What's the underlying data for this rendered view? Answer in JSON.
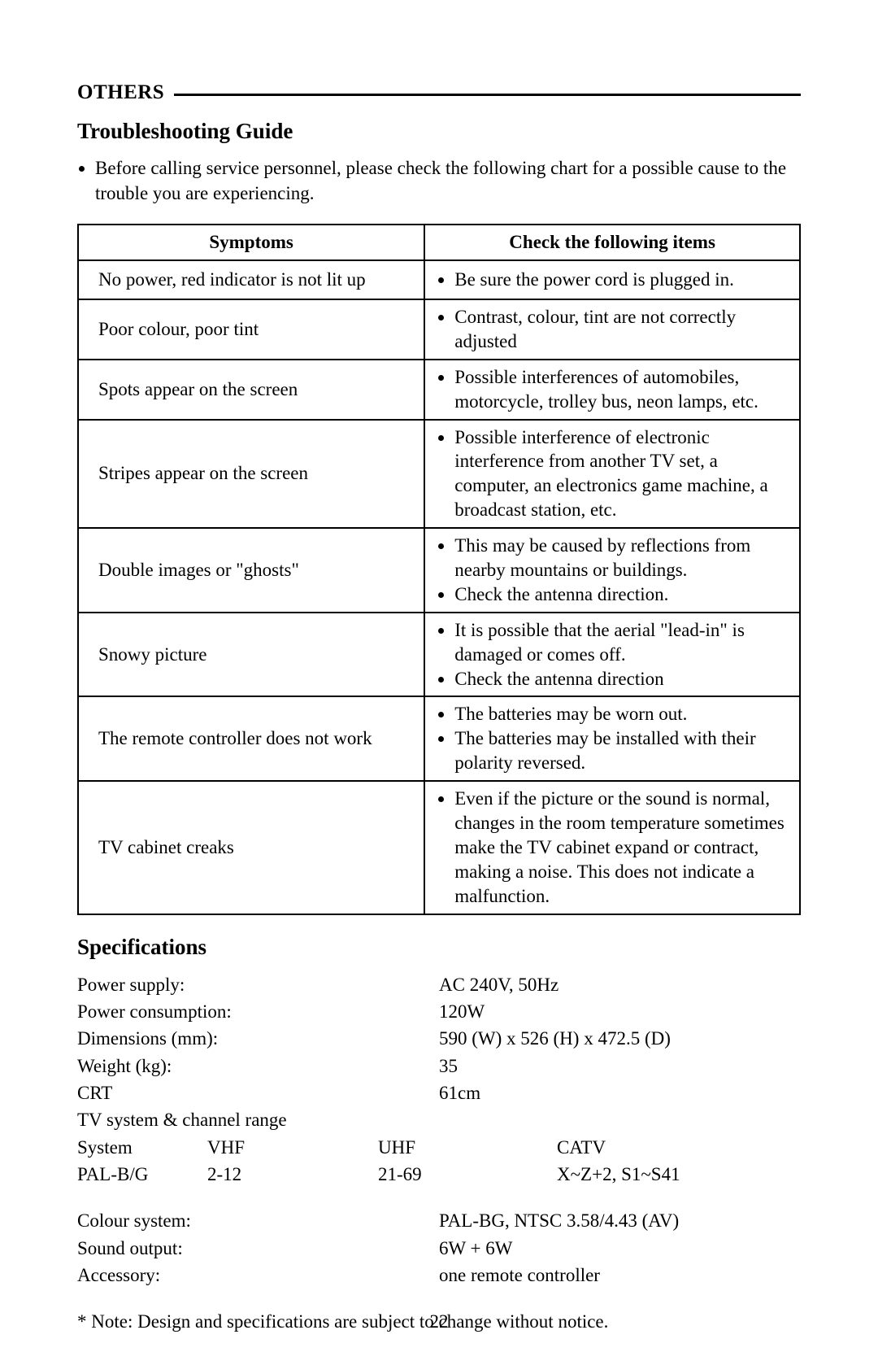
{
  "colors": {
    "text": "#000000",
    "background": "#ffffff",
    "rule": "#000000",
    "table_border": "#000000"
  },
  "typography": {
    "family": "Times New Roman",
    "body_size_pt": 17,
    "h2_size_pt": 20,
    "section_label_size_pt": 19
  },
  "section_label": "OTHERS",
  "troubleshooting": {
    "heading": "Troubleshooting Guide",
    "intro": "Before calling service personnel, please check the following chart for a possible cause to the trouble you are experiencing.",
    "columns": [
      "Symptoms",
      "Check the following items"
    ],
    "rows": [
      {
        "symptom": "No power, red indicator is not lit up",
        "checks": [
          "Be sure the power cord is plugged in."
        ]
      },
      {
        "symptom": "Poor colour, poor tint",
        "checks": [
          "Contrast, colour, tint are not correctly adjusted"
        ]
      },
      {
        "symptom": "Spots appear on the screen",
        "checks": [
          "Possible interferences of automobiles, motorcycle, trolley bus, neon lamps, etc."
        ]
      },
      {
        "symptom": "Stripes appear on the screen",
        "checks": [
          "Possible interference of electronic interference from another TV set, a computer, an electronics game machine, a broadcast station, etc."
        ]
      },
      {
        "symptom": "Double images or \"ghosts\"",
        "checks": [
          "This may be caused by reflections from nearby mountains or buildings.",
          "Check the antenna direction."
        ]
      },
      {
        "symptom": "Snowy picture",
        "checks": [
          "It is possible that the aerial \"lead-in\" is damaged or comes off.",
          "Check the antenna direction"
        ]
      },
      {
        "symptom": "The remote controller does not work",
        "checks": [
          "The batteries may be worn out.",
          "The batteries may be installed with their polarity reversed."
        ]
      },
      {
        "symptom": "TV cabinet creaks",
        "checks": [
          "Even if the picture or the sound is normal, changes in the room temperature sometimes make the TV cabinet expand or contract, making a noise. This does not indicate a malfunction."
        ]
      }
    ]
  },
  "specifications": {
    "heading": "Specifications",
    "items": [
      {
        "label": "Power supply:",
        "value": "AC 240V, 50Hz"
      },
      {
        "label": "Power consumption:",
        "value": "120W"
      },
      {
        "label": "Dimensions (mm):",
        "value": "590 (W) x 526 (H) x 472.5 (D)"
      },
      {
        "label": "Weight (kg):",
        "value": "35"
      },
      {
        "label": "CRT",
        "value": "61cm"
      }
    ],
    "channel_range_label": "TV system & channel range",
    "channel_headers": [
      "System",
      "VHF",
      "UHF",
      "CATV"
    ],
    "channel_values": [
      "PAL-B/G",
      "2-12",
      "21-69",
      "X~Z+2, S1~S41"
    ],
    "items2": [
      {
        "label": "Colour system:",
        "value": "PAL-BG, NTSC  3.58/4.43 (AV)"
      },
      {
        "label": "Sound output:",
        "value": "6W + 6W"
      },
      {
        "label": "Accessory:",
        "value": "one remote controller"
      }
    ],
    "note": "* Note: Design and specifications are subject to change without notice."
  },
  "page_number": "22"
}
